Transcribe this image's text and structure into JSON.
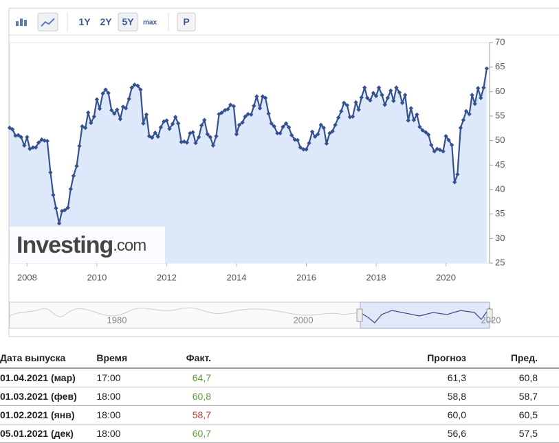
{
  "toolbar": {
    "buttons": [
      "1Y",
      "2Y",
      "5Y",
      "max",
      "P"
    ]
  },
  "chart_data": {
    "type": "line",
    "x": [
      2007.5,
      2007.58,
      2007.67,
      2007.75,
      2007.83,
      2007.92,
      2008.0,
      2008.08,
      2008.17,
      2008.25,
      2008.33,
      2008.42,
      2008.5,
      2008.58,
      2008.67,
      2008.75,
      2008.83,
      2008.92,
      2009.0,
      2009.08,
      2009.17,
      2009.25,
      2009.33,
      2009.42,
      2009.5,
      2009.58,
      2009.67,
      2009.75,
      2009.83,
      2009.92,
      2010.0,
      2010.08,
      2010.17,
      2010.25,
      2010.33,
      2010.42,
      2010.5,
      2010.58,
      2010.67,
      2010.75,
      2010.83,
      2010.92,
      2011.0,
      2011.08,
      2011.17,
      2011.25,
      2011.33,
      2011.42,
      2011.5,
      2011.58,
      2011.67,
      2011.75,
      2011.83,
      2011.92,
      2012.0,
      2012.08,
      2012.17,
      2012.25,
      2012.33,
      2012.42,
      2012.5,
      2012.58,
      2012.67,
      2012.75,
      2012.83,
      2012.92,
      2013.0,
      2013.08,
      2013.17,
      2013.25,
      2013.33,
      2013.42,
      2013.5,
      2013.58,
      2013.67,
      2013.75,
      2013.83,
      2013.92,
      2014.0,
      2014.08,
      2014.17,
      2014.25,
      2014.33,
      2014.42,
      2014.5,
      2014.58,
      2014.67,
      2014.75,
      2014.83,
      2014.92,
      2015.0,
      2015.08,
      2015.17,
      2015.25,
      2015.33,
      2015.42,
      2015.5,
      2015.58,
      2015.67,
      2015.75,
      2015.83,
      2015.92,
      2016.0,
      2016.08,
      2016.17,
      2016.25,
      2016.33,
      2016.42,
      2016.5,
      2016.58,
      2016.67,
      2016.75,
      2016.83,
      2016.92,
      2017.0,
      2017.08,
      2017.17,
      2017.25,
      2017.33,
      2017.42,
      2017.5,
      2017.58,
      2017.67,
      2017.75,
      2017.83,
      2017.92,
      2018.0,
      2018.08,
      2018.17,
      2018.25,
      2018.33,
      2018.42,
      2018.5,
      2018.58,
      2018.67,
      2018.75,
      2018.83,
      2018.92,
      2019.0,
      2019.08,
      2019.17,
      2019.25,
      2019.33,
      2019.42,
      2019.5,
      2019.58,
      2019.67,
      2019.75,
      2019.83,
      2019.92,
      2020.0,
      2020.08,
      2020.17,
      2020.25,
      2020.33,
      2020.42,
      2020.5,
      2020.58,
      2020.67,
      2020.75,
      2020.83,
      2020.92,
      2021.0,
      2021.08,
      2021.17
    ],
    "series": [
      {
        "color": "#34508f",
        "values": [
          52.6,
          52.3,
          51.0,
          51.1,
          50.7,
          49.0,
          50.7,
          48.3,
          48.6,
          48.6,
          49.6,
          50.2,
          50.0,
          49.9,
          43.5,
          38.9,
          36.2,
          33.1,
          35.6,
          35.8,
          36.3,
          40.1,
          42.8,
          44.8,
          48.9,
          52.9,
          52.6,
          55.7,
          53.6,
          54.9,
          58.4,
          56.5,
          59.6,
          60.4,
          59.7,
          56.2,
          55.5,
          56.3,
          54.4,
          56.9,
          56.6,
          58.5,
          60.8,
          61.4,
          61.2,
          60.4,
          53.5,
          55.3,
          50.9,
          50.6,
          51.6,
          50.8,
          52.7,
          53.9,
          54.1,
          52.4,
          53.4,
          54.8,
          53.5,
          49.7,
          49.8,
          49.6,
          51.5,
          51.7,
          49.5,
          50.7,
          53.1,
          54.2,
          51.3,
          50.7,
          49.0,
          50.9,
          55.4,
          55.7,
          56.2,
          56.4,
          57.3,
          57.0,
          51.3,
          53.2,
          53.7,
          54.9,
          55.4,
          55.3,
          57.1,
          59.0,
          56.6,
          59.0,
          58.7,
          55.5,
          53.5,
          52.9,
          51.5,
          51.5,
          52.8,
          53.5,
          52.7,
          51.1,
          50.2,
          50.1,
          48.6,
          48.2,
          48.2,
          49.5,
          51.8,
          50.8,
          51.3,
          53.2,
          52.6,
          49.4,
          51.5,
          51.9,
          53.2,
          54.7,
          56.0,
          57.7,
          57.2,
          54.8,
          54.9,
          57.8,
          56.3,
          58.8,
          60.8,
          58.7,
          58.2,
          59.7,
          59.1,
          60.8,
          59.3,
          57.3,
          58.7,
          60.2,
          58.1,
          60.8,
          59.8,
          57.7,
          59.3,
          54.1,
          56.6,
          54.2,
          55.3,
          52.8,
          52.1,
          51.7,
          51.2,
          49.1,
          47.8,
          48.3,
          48.1,
          47.8,
          50.9,
          50.1,
          49.1,
          41.5,
          43.1,
          52.6,
          54.2,
          56.0,
          55.4,
          59.3,
          57.5,
          60.7,
          58.7,
          60.8,
          64.7
        ]
      }
    ],
    "xlim": [
      2007.5,
      2021.25
    ],
    "xticks": [
      2008,
      2010,
      2012,
      2014,
      2016,
      2018,
      2020
    ],
    "ylim": [
      25,
      70
    ],
    "yticks": [
      25,
      30,
      35,
      40,
      45,
      50,
      55,
      60,
      65,
      70
    ],
    "fill": "#dde9fb",
    "grid": false
  },
  "watermark": {
    "brand": "Investing",
    "suffix": ".com"
  },
  "navigator": {
    "labels": [
      "1980",
      "2000",
      "2020"
    ]
  },
  "table": {
    "header": [
      "Дата выпуска",
      "Время",
      "Факт.",
      "Прогноз",
      "Пред."
    ],
    "rows": [
      [
        "01.04.2021 (мар)",
        "17:00",
        "64,7",
        "61,3",
        "60,8"
      ],
      [
        "01.03.2021 (фев)",
        "18:00",
        "60,8",
        "58,8",
        "58,7"
      ],
      [
        "01.02.2021 (янв)",
        "18:00",
        "58,7",
        "60,0",
        "60,5"
      ],
      [
        "05.01.2021 (дек)",
        "18:00",
        "60,7",
        "56,6",
        "57,5"
      ]
    ],
    "fact_colors": [
      "#5a9a34",
      "#5a9a34",
      "#c0392b",
      "#5a9a34"
    ]
  }
}
